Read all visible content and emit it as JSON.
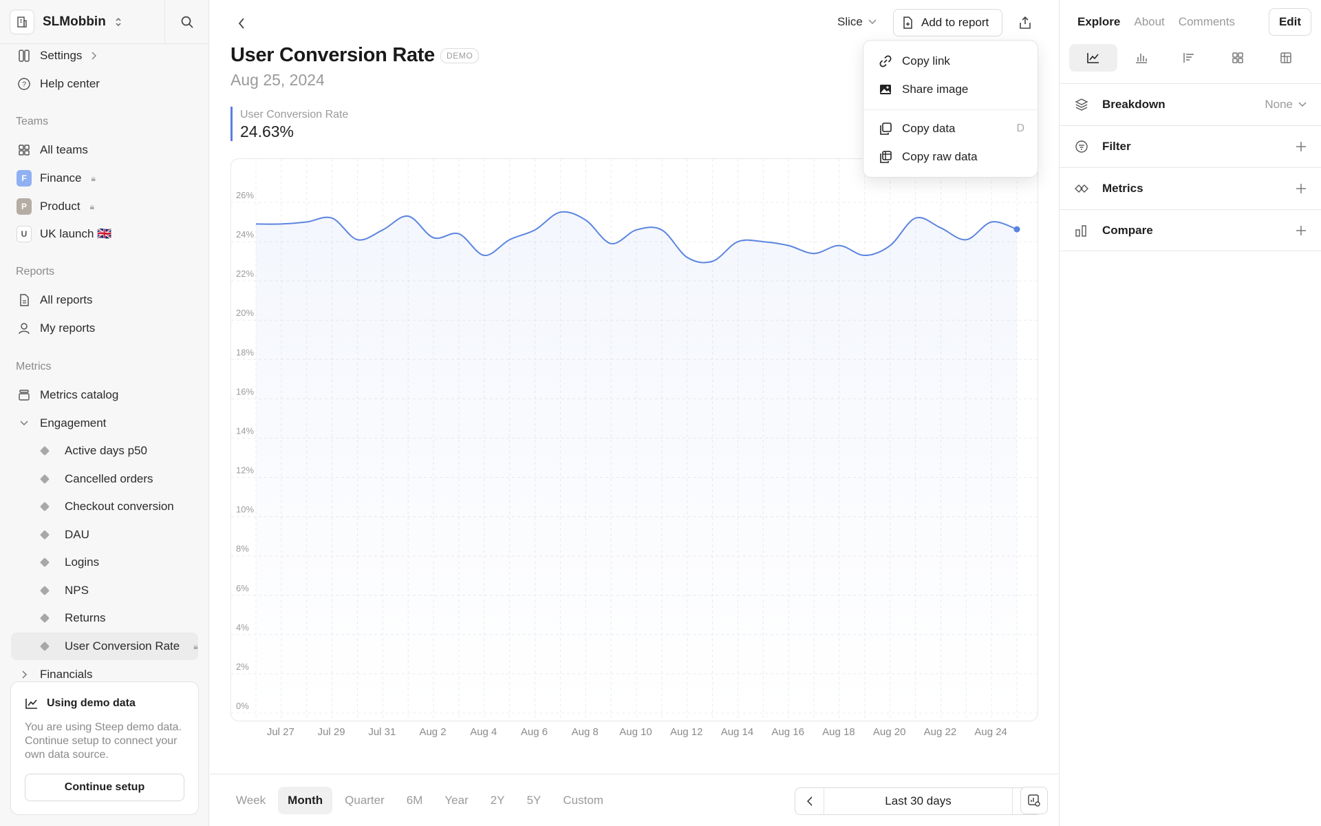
{
  "workspace": {
    "name": "SLMobbin"
  },
  "sidebar": {
    "settings_label": "Settings",
    "help_label": "Help center",
    "teams_label": "Teams",
    "teams": [
      {
        "label": "All teams"
      },
      {
        "label": "Finance",
        "badge": "F",
        "badge_color": "#8fb0f2"
      },
      {
        "label": "Product",
        "badge": "P",
        "badge_color": "#b5aca4"
      },
      {
        "label": "UK launch 🇬🇧",
        "badge": "U"
      }
    ],
    "reports_label": "Reports",
    "reports": [
      {
        "label": "All reports"
      },
      {
        "label": "My reports"
      }
    ],
    "metrics_label": "Metrics",
    "metrics_catalog": "Metrics catalog",
    "engagement": "Engagement",
    "engagement_items": [
      "Active days p50",
      "Cancelled orders",
      "Checkout conversion",
      "DAU",
      "Logins",
      "NPS",
      "Returns",
      "User Conversion Rate"
    ],
    "financials": "Financials"
  },
  "demo_card": {
    "title": "Using demo data",
    "text": "You are using Steep demo data. Continue setup to connect your own data source.",
    "button": "Continue setup"
  },
  "header": {
    "slice_label": "Slice",
    "add_to_report": "Add to report"
  },
  "metric": {
    "title": "User Conversion Rate",
    "badge": "DEMO",
    "date": "Aug 25, 2024",
    "kpi_label": "User Conversion Rate",
    "kpi_value": "24.63%"
  },
  "menu": {
    "items": [
      {
        "label": "Copy link",
        "icon": "link-icon"
      },
      {
        "label": "Share image",
        "icon": "image-icon"
      },
      {
        "label": "Copy data",
        "icon": "copy-icon",
        "shortcut": "D"
      },
      {
        "label": "Copy raw data",
        "icon": "table-copy-icon"
      }
    ]
  },
  "footer": {
    "ranges": [
      "Week",
      "Month",
      "Quarter",
      "6M",
      "Year",
      "2Y",
      "5Y",
      "Custom"
    ],
    "active_range": "Month",
    "period_label": "Last 30 days"
  },
  "right_panel": {
    "tabs": [
      "Explore",
      "About",
      "Comments"
    ],
    "active_tab": "Explore",
    "edit_label": "Edit",
    "breakdown": {
      "label": "Breakdown",
      "value": "None"
    },
    "filter_label": "Filter",
    "metrics_label": "Metrics",
    "compare_label": "Compare"
  },
  "chart_data": {
    "type": "area",
    "x": [
      "Jul 26",
      "Jul 27",
      "Jul 28",
      "Jul 29",
      "Jul 30",
      "Jul 31",
      "Aug 1",
      "Aug 2",
      "Aug 3",
      "Aug 4",
      "Aug 5",
      "Aug 6",
      "Aug 7",
      "Aug 8",
      "Aug 9",
      "Aug 10",
      "Aug 11",
      "Aug 12",
      "Aug 13",
      "Aug 14",
      "Aug 15",
      "Aug 16",
      "Aug 17",
      "Aug 18",
      "Aug 19",
      "Aug 20",
      "Aug 21",
      "Aug 22",
      "Aug 23",
      "Aug 24",
      "Aug 25"
    ],
    "values": [
      24.9,
      24.9,
      25.0,
      25.2,
      24.1,
      24.6,
      25.3,
      24.2,
      24.4,
      23.3,
      24.1,
      24.6,
      25.5,
      25.1,
      23.9,
      24.6,
      24.6,
      23.2,
      23.0,
      24.0,
      24.0,
      23.8,
      23.4,
      23.8,
      23.3,
      23.8,
      25.2,
      24.7,
      24.1,
      25.0,
      24.63
    ],
    "x_tick_labels": [
      "Jul 27",
      "Jul 29",
      "Jul 31",
      "Aug 2",
      "Aug 4",
      "Aug 6",
      "Aug 8",
      "Aug 10",
      "Aug 12",
      "Aug 14",
      "Aug 16",
      "Aug 18",
      "Aug 20",
      "Aug 22",
      "Aug 24"
    ],
    "y_tick_labels": [
      "0%",
      "2%",
      "4%",
      "6%",
      "8%",
      "10%",
      "12%",
      "14%",
      "16%",
      "18%",
      "20%",
      "22%",
      "24%",
      "26%"
    ],
    "ylim": [
      0,
      26
    ],
    "series_color": "#5b84e0",
    "grid": true
  }
}
